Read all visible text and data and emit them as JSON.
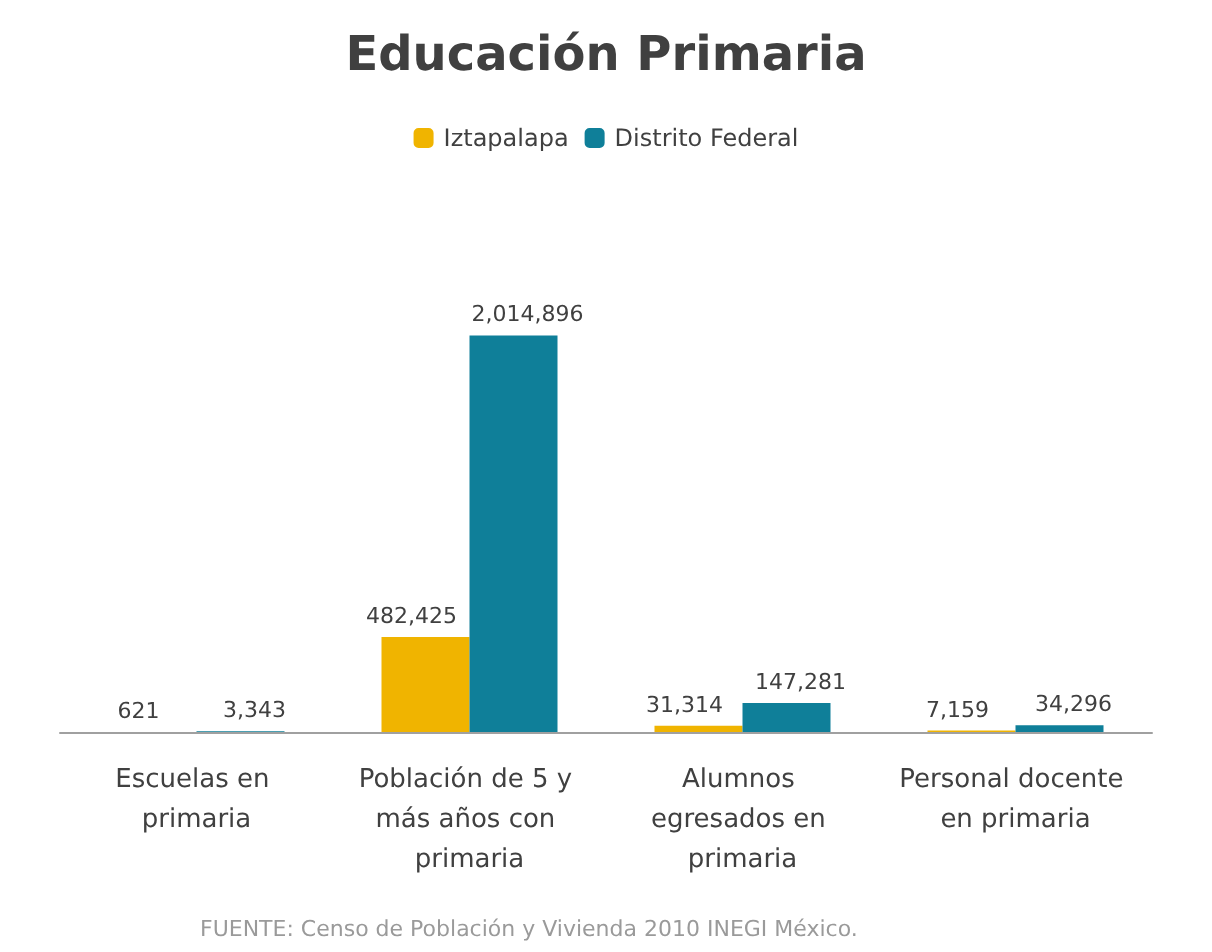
{
  "chart_data": {
    "type": "bar",
    "title": "Educación Primaria",
    "categories": [
      "Escuelas en primaria",
      "Población de 5 y más años con primaria",
      "Alumnos egresados en primaria",
      "Personal docente en primaria"
    ],
    "series": [
      {
        "name": "Iztapalapa",
        "color": "#f0b400",
        "values": [
          621,
          482425,
          31314,
          7159
        ],
        "value_labels": [
          "621",
          "482,425",
          "31,314",
          "7,159"
        ]
      },
      {
        "name": "Distrito Federal",
        "color": "#0f7f99",
        "values": [
          3343,
          2014896,
          147281,
          34296
        ],
        "value_labels": [
          "3,343",
          "2,014,896",
          "147,281",
          "34,296"
        ]
      }
    ],
    "legend": "top",
    "annotations": [
      "FUENTE: Censo de Población y Vivienda 2010 INEGI México."
    ]
  }
}
